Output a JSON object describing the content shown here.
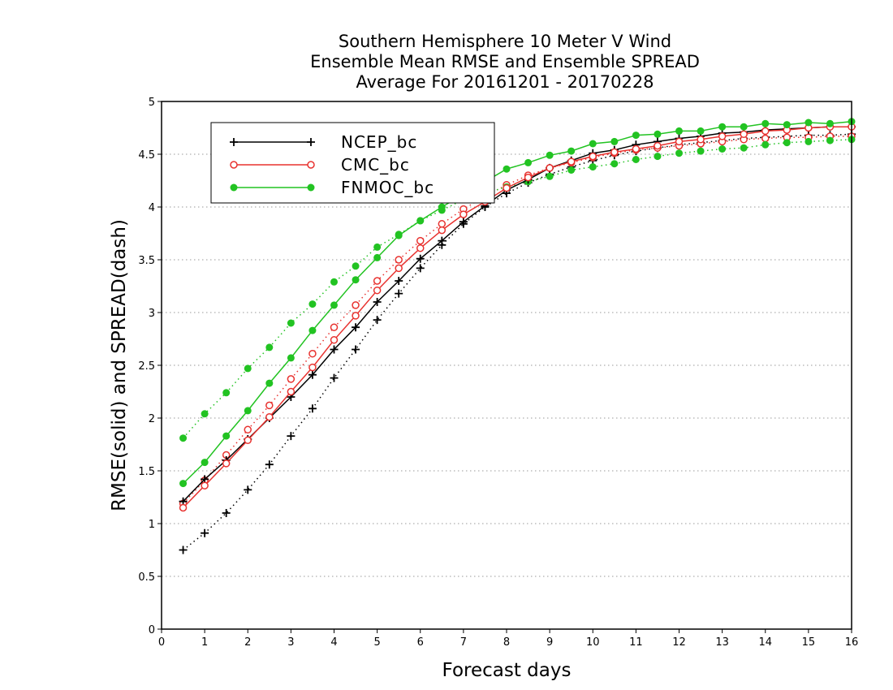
{
  "chart_data": {
    "type": "line",
    "title": [
      "Southern Hemisphere 10 Meter V Wind",
      "Ensemble Mean RMSE and Ensemble SPREAD",
      "Average For 20161201 - 20170228"
    ],
    "xlabel": "Forecast days",
    "ylabel": "RMSE(solid) and SPREAD(dash)",
    "xlim": [
      0,
      16
    ],
    "ylim": [
      0,
      5
    ],
    "xticks": [
      0,
      1,
      2,
      3,
      4,
      5,
      6,
      7,
      8,
      9,
      10,
      11,
      12,
      13,
      14,
      15,
      16
    ],
    "yticks": [
      0,
      0.5,
      1,
      1.5,
      2,
      2.5,
      3,
      3.5,
      4,
      4.5,
      5
    ],
    "grid": "horizontal dotted",
    "legend": "top-left",
    "x": [
      0.5,
      1,
      1.5,
      2,
      2.5,
      3,
      3.5,
      4,
      4.5,
      5,
      5.5,
      6,
      6.5,
      7,
      7.5,
      8,
      8.5,
      9,
      9.5,
      10,
      10.5,
      11,
      11.5,
      12,
      12.5,
      13,
      13.5,
      14,
      14.5,
      15,
      15.5,
      16
    ],
    "series": [
      {
        "name": "NCEP_bc",
        "color": "#000000",
        "marker": "plus",
        "rmse": [
          1.21,
          1.42,
          1.6,
          1.8,
          2.0,
          2.2,
          2.41,
          2.65,
          2.86,
          3.1,
          3.3,
          3.51,
          3.68,
          3.86,
          4.01,
          4.16,
          4.26,
          4.37,
          4.44,
          4.51,
          4.54,
          4.59,
          4.62,
          4.65,
          4.67,
          4.7,
          4.71,
          4.73,
          4.74,
          4.75,
          4.76,
          4.76
        ],
        "spread": [
          0.75,
          0.91,
          1.1,
          1.32,
          1.56,
          1.83,
          2.09,
          2.38,
          2.65,
          2.93,
          3.18,
          3.42,
          3.64,
          3.84,
          4.0,
          4.13,
          4.23,
          4.31,
          4.38,
          4.44,
          4.49,
          4.53,
          4.56,
          4.59,
          4.61,
          4.63,
          4.65,
          4.66,
          4.67,
          4.68,
          4.68,
          4.69
        ]
      },
      {
        "name": "CMC_bc",
        "color": "#e8322f",
        "marker": "open-circle",
        "rmse": [
          1.15,
          1.36,
          1.57,
          1.79,
          2.01,
          2.25,
          2.48,
          2.74,
          2.97,
          3.21,
          3.42,
          3.61,
          3.78,
          3.93,
          4.05,
          4.18,
          4.28,
          4.37,
          4.43,
          4.48,
          4.52,
          4.55,
          4.58,
          4.62,
          4.64,
          4.67,
          4.69,
          4.72,
          4.73,
          4.75,
          4.76,
          4.76
        ],
        "spread": [
          1.19,
          1.41,
          1.65,
          1.89,
          2.12,
          2.37,
          2.61,
          2.86,
          3.07,
          3.3,
          3.5,
          3.68,
          3.84,
          3.98,
          4.1,
          4.21,
          4.3,
          4.37,
          4.42,
          4.47,
          4.51,
          4.54,
          4.56,
          4.58,
          4.6,
          4.62,
          4.64,
          4.65,
          4.66,
          4.66,
          4.67,
          4.67
        ]
      },
      {
        "name": "FNMOC_bc",
        "color": "#22c322",
        "marker": "filled-circle",
        "rmse": [
          1.38,
          1.58,
          1.83,
          2.07,
          2.33,
          2.57,
          2.83,
          3.07,
          3.31,
          3.52,
          3.73,
          3.87,
          4.0,
          4.12,
          4.24,
          4.36,
          4.42,
          4.49,
          4.53,
          4.6,
          4.62,
          4.68,
          4.69,
          4.72,
          4.72,
          4.76,
          4.76,
          4.79,
          4.78,
          4.8,
          4.79,
          4.81
        ],
        "spread": [
          1.81,
          2.04,
          2.24,
          2.47,
          2.67,
          2.9,
          3.08,
          3.29,
          3.44,
          3.62,
          3.74,
          3.87,
          3.97,
          4.07,
          4.13,
          4.19,
          4.24,
          4.29,
          4.35,
          4.38,
          4.41,
          4.45,
          4.48,
          4.51,
          4.53,
          4.55,
          4.56,
          4.59,
          4.61,
          4.62,
          4.63,
          4.64
        ]
      }
    ]
  }
}
